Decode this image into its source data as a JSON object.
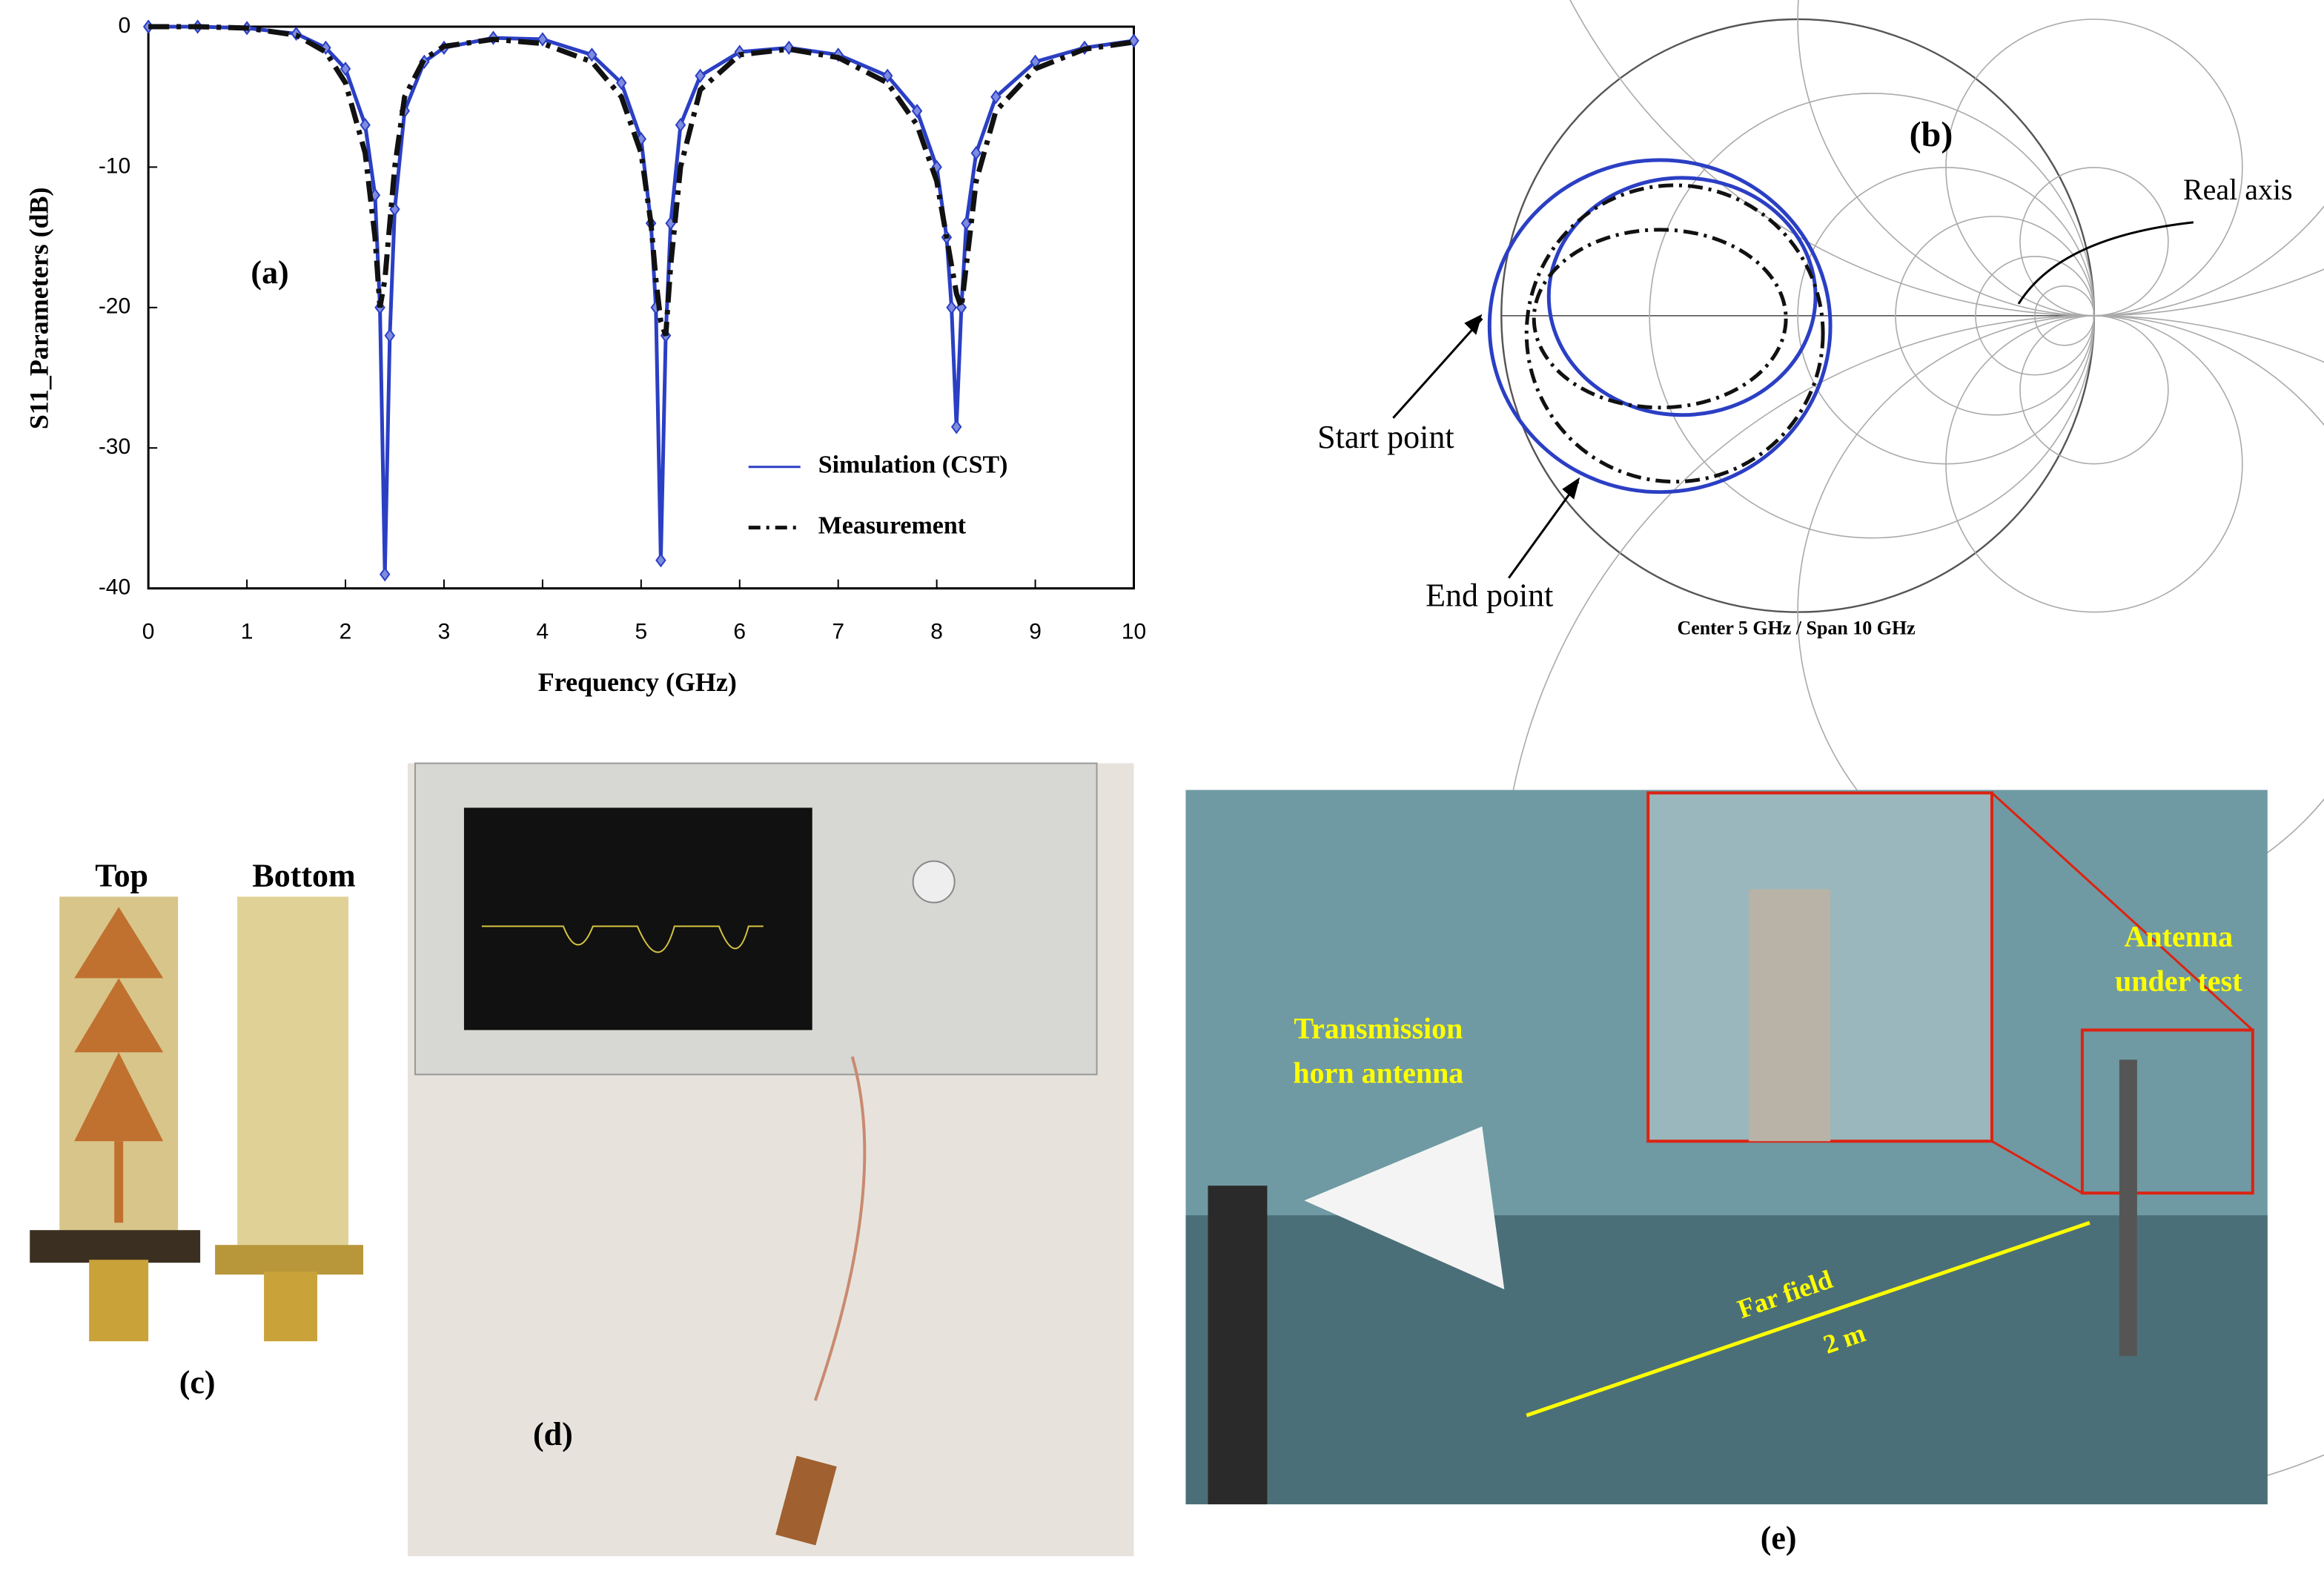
{
  "chart_data": {
    "type": "line",
    "panel_label": "(a)",
    "x_label": "Frequency (GHz)",
    "y_label": "S11_Parameters (dB)",
    "x": [
      0,
      0.5,
      1,
      1.5,
      1.8,
      2.0,
      2.2,
      2.3,
      2.35,
      2.4,
      2.45,
      2.5,
      2.6,
      2.8,
      3.0,
      3.5,
      4.0,
      4.5,
      4.8,
      5.0,
      5.1,
      5.15,
      5.2,
      5.25,
      5.3,
      5.4,
      5.6,
      6.0,
      6.5,
      7.0,
      7.5,
      7.8,
      8.0,
      8.1,
      8.15,
      8.2,
      8.25,
      8.3,
      8.4,
      8.6,
      9.0,
      9.5,
      10
    ],
    "series": [
      {
        "name": "Simulation (CST)",
        "color": "#2b3fc4",
        "values": [
          0,
          0,
          -0.1,
          -0.5,
          -1.5,
          -3,
          -7,
          -12,
          -20,
          -39,
          -22,
          -13,
          -6,
          -2.5,
          -1.5,
          -0.8,
          -0.9,
          -2,
          -4,
          -8,
          -14,
          -20,
          -38,
          -22,
          -14,
          -7,
          -3.5,
          -1.8,
          -1.5,
          -2,
          -3.5,
          -6,
          -10,
          -15,
          -20,
          -28.5,
          -20,
          -14,
          -9,
          -5,
          -2.5,
          -1.5,
          -1
        ]
      },
      {
        "name": "Measurement",
        "color": "#111111",
        "values": [
          0,
          0,
          -0.1,
          -0.6,
          -1.8,
          -4,
          -9,
          -15,
          -20,
          -18,
          -14,
          -10,
          -5,
          -2.3,
          -1.4,
          -0.9,
          -1.2,
          -2.5,
          -5,
          -9,
          -14,
          -18,
          -21,
          -22,
          -17,
          -10,
          -4.5,
          -2,
          -1.6,
          -2.2,
          -4,
          -7,
          -11,
          -15,
          -17,
          -19,
          -20,
          -17,
          -11,
          -6,
          -3,
          -1.6,
          -1.1
        ]
      }
    ],
    "xlim": [
      0,
      10
    ],
    "xticks": [
      0,
      1,
      2,
      3,
      4,
      5,
      6,
      7,
      8,
      9,
      10
    ],
    "ylim": [
      -40,
      0
    ],
    "yticks": [
      -40,
      -30,
      -20,
      -10,
      0
    ]
  },
  "smith_chart": {
    "panel_label": "(b)",
    "real_axis": "Real axis",
    "start": "Start point",
    "end": "End point",
    "caption": "Center 5 GHz  /  Span 10 GHz"
  },
  "photos": {
    "c": {
      "label": "(c)",
      "top": "Top",
      "bottom": "Bottom"
    },
    "d": {
      "label": "(d)"
    },
    "e": {
      "label": "(e)",
      "horn": [
        "Transmission",
        "horn antenna"
      ],
      "aut": [
        "Antenna",
        "under test"
      ],
      "far": "Far field",
      "dist": "2 m"
    }
  }
}
